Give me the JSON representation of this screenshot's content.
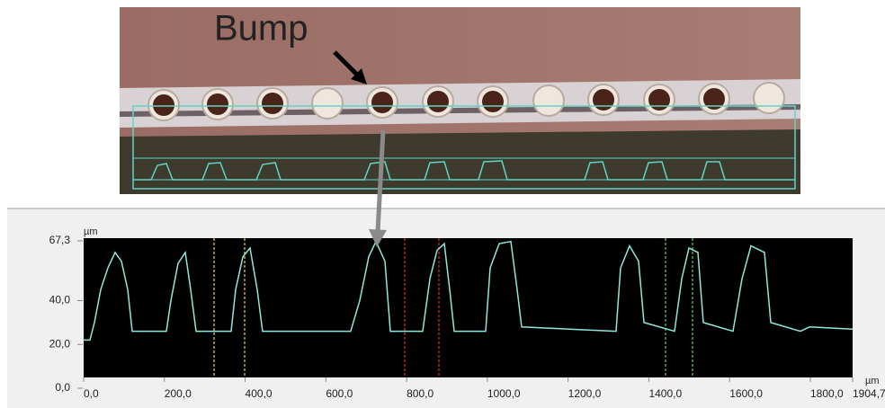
{
  "annotation": "Bump",
  "chart_data": {
    "type": "line",
    "y_unit": "µm",
    "x_unit": "µm",
    "color": "#8ee8dc",
    "x": [
      0,
      15.6,
      26.7,
      42.3,
      60.1,
      77.9,
      93.6,
      109.2,
      120.3,
      205.0,
      216.1,
      233.9,
      251.7,
      265.1,
      278.4,
      365.3,
      376.4,
      394.2,
      412.1,
      429.9,
      443.2,
      661.5,
      683.8,
      706.1,
      724.0,
      746.3,
      759.6,
      839.8,
      857.7,
      875.5,
      893.3,
      906.7,
      917.8,
      995.8,
      1006.9,
      1029.2,
      1058.2,
      1073.8,
      1084.9,
      1318.8,
      1329.9,
      1352.2,
      1374.5,
      1387.9,
      1463.6,
      1481.4,
      1499.3,
      1521.6,
      1534.9,
      1608.4,
      1630.7,
      1653.0,
      1686.4,
      1702.0,
      1775.5,
      1797.8,
      1904.7
    ],
    "values": [
      22,
      22,
      30,
      45,
      55,
      62,
      58,
      45,
      26,
      26,
      40,
      57,
      62,
      45,
      26,
      26,
      45,
      60,
      64,
      45,
      26,
      26,
      40,
      60,
      67,
      58,
      26,
      26,
      50,
      63,
      66,
      45,
      26,
      26,
      55,
      66,
      67,
      45,
      28,
      26,
      55,
      65,
      58,
      30,
      26,
      50,
      64,
      62,
      30,
      26,
      50,
      65,
      62,
      30,
      26,
      28,
      27
    ],
    "xlim": [
      0,
      1904.7
    ],
    "ylim": [
      0,
      67.3
    ],
    "xticks": [
      {
        "value": 0,
        "label": "0,0"
      },
      {
        "value": 200,
        "label": "200,0"
      },
      {
        "value": 400,
        "label": "400,0"
      },
      {
        "value": 600,
        "label": "600,0"
      },
      {
        "value": 800,
        "label": "800,0"
      },
      {
        "value": 1000,
        "label": "1000,0"
      },
      {
        "value": 1200,
        "label": "1200,0"
      },
      {
        "value": 1400,
        "label": "1400,0"
      },
      {
        "value": 1600,
        "label": "1600,0"
      },
      {
        "value": 1800,
        "label": "1800,0"
      },
      {
        "value": 1904.7,
        "label": "1904,7"
      }
    ],
    "yticks": [
      {
        "value": 0,
        "label": "0,0"
      },
      {
        "value": 20,
        "label": "20,0"
      },
      {
        "value": 40,
        "label": "40,0"
      },
      {
        "value": 67.3,
        "label": "67,3"
      }
    ]
  }
}
